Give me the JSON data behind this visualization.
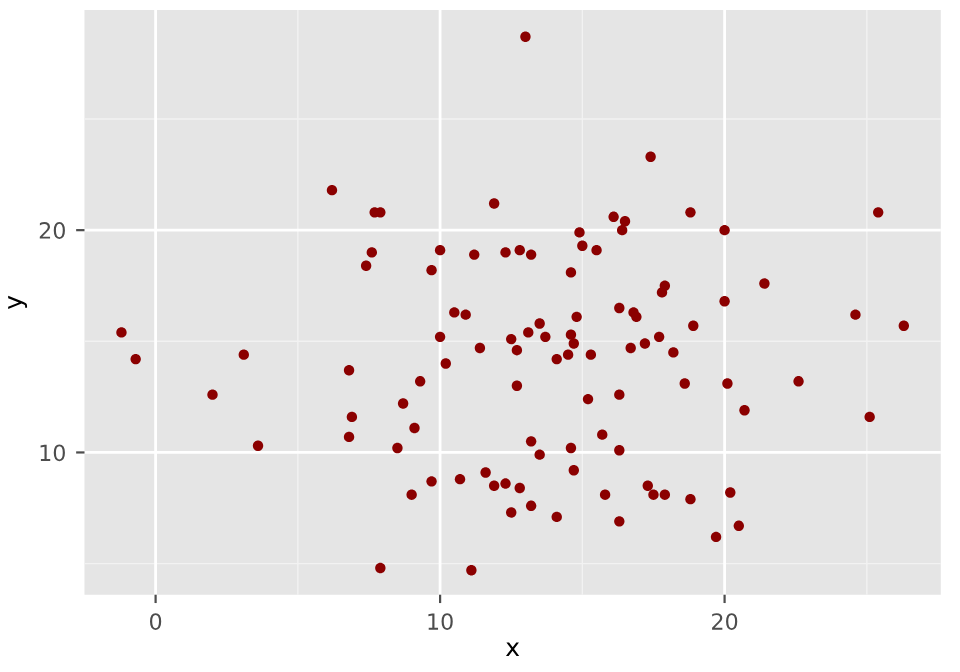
{
  "chart_data": {
    "type": "scatter",
    "xlabel": "x",
    "ylabel": "y",
    "xlim": [
      -2.5,
      27.6
    ],
    "ylim": [
      3.6,
      29.9
    ],
    "xticks": [
      0,
      10,
      20
    ],
    "yticks": [
      10,
      20
    ],
    "grid": true,
    "marker": "circle",
    "legend": false,
    "series": [
      {
        "color": "#8b0000",
        "x": [
          6.2,
          7.7,
          7.9,
          11.9,
          7.6,
          7.4,
          10.0,
          11.2,
          9.7,
          -1.2,
          -0.7,
          3.1,
          2.0,
          3.6,
          10.5,
          10.9,
          10.0,
          11.4,
          10.2,
          6.8,
          9.3,
          8.7,
          6.9,
          9.1,
          6.8,
          8.5,
          11.6,
          10.7,
          9.7,
          11.9,
          9.0,
          7.9,
          11.1,
          13.0,
          17.4,
          16.1,
          16.5,
          16.4,
          18.8,
          25.4,
          20.0,
          14.9,
          15.0,
          15.5,
          12.3,
          12.8,
          13.2,
          14.6,
          17.9,
          17.8,
          21.4,
          20.0,
          16.3,
          16.8,
          16.9,
          14.8,
          24.6,
          26.3,
          18.9,
          13.5,
          13.1,
          13.7,
          12.5,
          14.6,
          14.7,
          17.7,
          17.2,
          16.7,
          12.7,
          14.5,
          15.3,
          14.1,
          18.2,
          12.7,
          18.6,
          20.1,
          22.6,
          16.3,
          15.2,
          20.7,
          25.1,
          15.7,
          13.2,
          14.6,
          16.3,
          13.5,
          14.7,
          12.3,
          12.8,
          17.3,
          17.5,
          17.9,
          15.8,
          20.2,
          18.8,
          12.5,
          13.2,
          14.1,
          16.3,
          20.5,
          19.7
        ],
        "values": [
          21.8,
          20.8,
          20.8,
          21.2,
          19.0,
          18.4,
          19.1,
          18.9,
          18.2,
          15.4,
          14.2,
          14.4,
          12.6,
          10.3,
          16.3,
          16.2,
          15.2,
          14.7,
          14.0,
          13.7,
          13.2,
          12.2,
          11.6,
          11.1,
          10.7,
          10.2,
          9.1,
          8.8,
          8.7,
          8.5,
          8.1,
          4.8,
          4.7,
          28.7,
          23.3,
          20.6,
          20.4,
          20.0,
          20.8,
          20.8,
          20.0,
          19.9,
          19.3,
          19.1,
          19.0,
          19.1,
          18.9,
          18.1,
          17.5,
          17.2,
          17.6,
          16.8,
          16.5,
          16.3,
          16.1,
          16.1,
          16.2,
          15.7,
          15.7,
          15.8,
          15.4,
          15.2,
          15.1,
          15.3,
          14.9,
          15.2,
          14.9,
          14.7,
          14.6,
          14.4,
          14.4,
          14.2,
          14.5,
          13.0,
          13.1,
          13.1,
          13.2,
          12.6,
          12.4,
          11.9,
          11.6,
          10.8,
          10.5,
          10.2,
          10.1,
          9.9,
          9.2,
          8.6,
          8.4,
          8.5,
          8.1,
          8.1,
          8.1,
          8.2,
          7.9,
          7.3,
          7.6,
          7.1,
          6.9,
          6.7,
          6.2
        ]
      }
    ]
  }
}
